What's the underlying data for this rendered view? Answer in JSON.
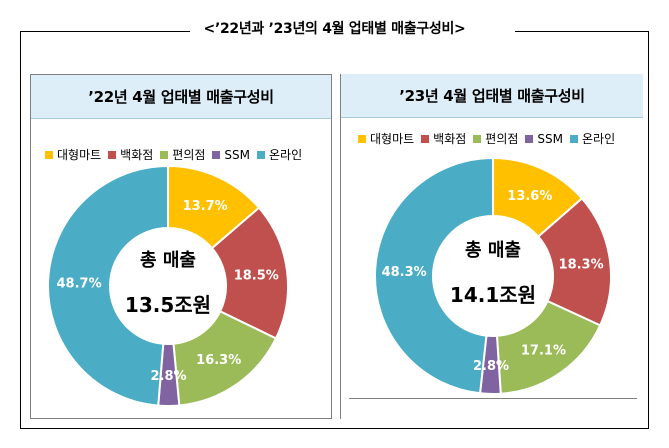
{
  "title": "<’22년과 ’23년의 4월 업태별 매출구성비>",
  "legend": [
    {
      "name": "대형마트",
      "color": "#ffc000"
    },
    {
      "name": "백화점",
      "color": "#c0504d"
    },
    {
      "name": "편의점",
      "color": "#9bbb59"
    },
    {
      "name": "SSM",
      "color": "#8064a2"
    },
    {
      "name": "온라인",
      "color": "#4bacc6"
    }
  ],
  "chart_data": [
    {
      "type": "pie",
      "title": "’22년 4월 업태별 매출구성비",
      "center_label": [
        "총 매출",
        "13.5조원"
      ],
      "categories": [
        "대형마트",
        "백화점",
        "편의점",
        "SSM",
        "온라인"
      ],
      "values": [
        13.7,
        18.5,
        16.3,
        2.8,
        48.7
      ],
      "labels": [
        "13.7%",
        "18.5%",
        "16.3%",
        "2.8%",
        "48.7%"
      ],
      "colors": [
        "#ffc000",
        "#c0504d",
        "#9bbb59",
        "#8064a2",
        "#4bacc6"
      ]
    },
    {
      "type": "pie",
      "title": "’23년 4월 업태별 매출구성비",
      "center_label": [
        "총 매출",
        "14.1조원"
      ],
      "categories": [
        "대형마트",
        "백화점",
        "편의점",
        "SSM",
        "온라인"
      ],
      "values": [
        13.6,
        18.3,
        17.1,
        2.8,
        48.3
      ],
      "labels": [
        "13.6%",
        "18.3%",
        "17.1%",
        "2.8%",
        "48.3%"
      ],
      "colors": [
        "#ffc000",
        "#c0504d",
        "#9bbb59",
        "#8064a2",
        "#4bacc6"
      ]
    }
  ]
}
